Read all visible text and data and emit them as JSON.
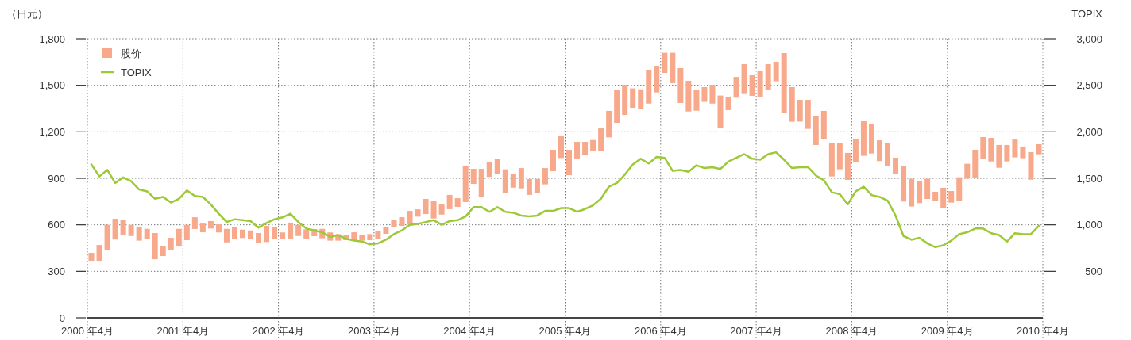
{
  "chart_data": {
    "type": "bar",
    "ylabel": "（日元）",
    "y2label": "TOPIX",
    "x": [
      "2000-04-16",
      "2000-05-16",
      "2000-06-16",
      "2000-07-16",
      "2000-08-16",
      "2000-09-16",
      "2000-10-16",
      "2000-11-16",
      "2000-12-16",
      "2001-01-16",
      "2001-02-16",
      "2001-03-16",
      "2001-04-16",
      "2001-05-16",
      "2001-06-16",
      "2001-07-16",
      "2001-08-16",
      "2001-09-16",
      "2001-10-16",
      "2001-11-16",
      "2001-12-16",
      "2002-01-16",
      "2002-02-16",
      "2002-03-16",
      "2002-04-16",
      "2002-05-16",
      "2002-06-16",
      "2002-07-16",
      "2002-08-16",
      "2002-09-16",
      "2002-10-16",
      "2002-11-16",
      "2002-12-16",
      "2003-01-16",
      "2003-02-16",
      "2003-03-16",
      "2003-04-16",
      "2003-05-16",
      "2003-06-16",
      "2003-07-16",
      "2003-08-16",
      "2003-09-16",
      "2003-10-16",
      "2003-11-16",
      "2003-12-16",
      "2004-01-16",
      "2004-02-16",
      "2004-03-16",
      "2004-04-16",
      "2004-05-16",
      "2004-06-16",
      "2004-07-16",
      "2004-08-16",
      "2004-09-16",
      "2004-10-16",
      "2004-11-16",
      "2004-12-16",
      "2005-01-16",
      "2005-02-16",
      "2005-03-16",
      "2005-04-16",
      "2005-05-16",
      "2005-06-16",
      "2005-07-16",
      "2005-08-16",
      "2005-09-16",
      "2005-10-16",
      "2005-11-16",
      "2005-12-16",
      "2006-01-16",
      "2006-02-16",
      "2006-03-16",
      "2006-04-16",
      "2006-05-16",
      "2006-06-16",
      "2006-07-16",
      "2006-08-16",
      "2006-09-16",
      "2006-10-16",
      "2006-11-16",
      "2006-12-16",
      "2007-01-16",
      "2007-02-16",
      "2007-03-16",
      "2007-04-16",
      "2007-05-16",
      "2007-06-16",
      "2007-07-16",
      "2007-08-16",
      "2007-09-16",
      "2007-10-16",
      "2007-11-16",
      "2007-12-16",
      "2008-01-16",
      "2008-02-16",
      "2008-03-16",
      "2008-04-16",
      "2008-05-16",
      "2008-06-16",
      "2008-07-16",
      "2008-08-16",
      "2008-09-16",
      "2008-10-16",
      "2008-11-16",
      "2008-12-16",
      "2009-01-16",
      "2009-02-16",
      "2009-03-16",
      "2009-04-16",
      "2009-05-16",
      "2009-06-16",
      "2009-07-16",
      "2009-08-16",
      "2009-09-16",
      "2009-10-16",
      "2009-11-16",
      "2009-12-16",
      "2010-01-16",
      "2010-02-16",
      "2010-03-16"
    ],
    "series": [
      {
        "name": "股价",
        "color": "#f8a98b",
        "base": [
          368,
          368,
          440,
          505,
          534,
          528,
          498,
          508,
          378,
          399,
          440,
          460,
          501,
          573,
          552,
          576,
          551,
          487,
          508,
          515,
          510,
          482,
          489,
          508,
          508,
          511,
          528,
          511,
          527,
          513,
          498,
          498,
          501,
          498,
          498,
          501,
          511,
          542,
          583,
          593,
          602,
          653,
          670,
          641,
          666,
          701,
          716,
          747,
          864,
          777,
          909,
          926,
          806,
          840,
          835,
          793,
          806,
          861,
          946,
          1031,
          920,
          1028,
          1048,
          1076,
          1079,
          1164,
          1258,
          1309,
          1355,
          1348,
          1382,
          1454,
          1580,
          1514,
          1386,
          1331,
          1336,
          1393,
          1382,
          1226,
          1340,
          1420,
          1449,
          1432,
          1427,
          1471,
          1526,
          1321,
          1265,
          1266,
          1219,
          1115,
          1152,
          912,
          958,
          890,
          1004,
          1045,
          1060,
          1011,
          978,
          931,
          750,
          718,
          740,
          767,
          752,
          707,
          743,
          753,
          898,
          900,
          1024,
          1009,
          968,
          1009,
          1035,
          1030,
          891,
          1055
        ],
        "values": [
          51,
          102,
          160,
          134,
          95,
          72,
          85,
          66,
          169,
          61,
          76,
          114,
          99,
          76,
          56,
          48,
          52,
          87,
          80,
          54,
          54,
          65,
          104,
          80,
          43,
          103,
          72,
          60,
          46,
          61,
          53,
          41,
          34,
          54,
          39,
          39,
          51,
          46,
          51,
          56,
          88,
          47,
          97,
          111,
          65,
          92,
          56,
          235,
          97,
          184,
          98,
          100,
          152,
          86,
          131,
          102,
          89,
          105,
          138,
          145,
          164,
          107,
          87,
          71,
          143,
          171,
          210,
          194,
          125,
          126,
          219,
          172,
          130,
          196,
          225,
          198,
          137,
          95,
          121,
          208,
          87,
          134,
          187,
          133,
          168,
          165,
          126,
          387,
          223,
          140,
          187,
          189,
          183,
          213,
          167,
          174,
          152,
          223,
          193,
          134,
          152,
          102,
          232,
          179,
          140,
          130,
          61,
          132,
          75,
          154,
          96,
          184,
          142,
          152,
          147,
          106,
          115,
          75,
          178,
          65
        ]
      },
      {
        "name": "TOPIX",
        "type": "line",
        "axis": "y2",
        "color": "#9dc937",
        "values": [
          1650,
          1520,
          1590,
          1450,
          1510,
          1470,
          1380,
          1360,
          1280,
          1300,
          1240,
          1280,
          1370,
          1310,
          1300,
          1220,
          1120,
          1030,
          1060,
          1050,
          1040,
          970,
          1020,
          1060,
          1080,
          1120,
          1030,
          960,
          940,
          920,
          870,
          890,
          850,
          830,
          820,
          790,
          800,
          840,
          900,
          940,
          1000,
          1010,
          1030,
          1050,
          1000,
          1040,
          1050,
          1090,
          1190,
          1190,
          1140,
          1190,
          1140,
          1130,
          1100,
          1090,
          1100,
          1150,
          1150,
          1180,
          1180,
          1140,
          1170,
          1210,
          1280,
          1410,
          1450,
          1540,
          1650,
          1710,
          1660,
          1730,
          1720,
          1580,
          1590,
          1570,
          1640,
          1610,
          1620,
          1600,
          1680,
          1720,
          1760,
          1710,
          1700,
          1760,
          1780,
          1700,
          1610,
          1620,
          1620,
          1530,
          1480,
          1350,
          1330,
          1220,
          1360,
          1410,
          1320,
          1300,
          1260,
          1100,
          880,
          840,
          860,
          800,
          760,
          780,
          830,
          900,
          920,
          960,
          960,
          910,
          890,
          820,
          910,
          900,
          900,
          990
        ]
      }
    ],
    "xlim": [
      "2000-04",
      "2010-04"
    ],
    "xticks": [
      {
        "value": "2000-04",
        "label": "2000 年4月"
      },
      {
        "value": "2001-04",
        "label": "2001 年4月"
      },
      {
        "value": "2002-04",
        "label": "2002 年4月"
      },
      {
        "value": "2003-04",
        "label": "2003 年4月"
      },
      {
        "value": "2004-04",
        "label": "2004 年4月"
      },
      {
        "value": "2005-04",
        "label": "2005 年4月"
      },
      {
        "value": "2006-04",
        "label": "2006 年4月"
      },
      {
        "value": "2007-04",
        "label": "2007 年4月"
      },
      {
        "value": "2008-04",
        "label": "2008 年4月"
      },
      {
        "value": "2009-04",
        "label": "2009 年4月"
      },
      {
        "value": "2010-04",
        "label": "2010 年4月"
      }
    ],
    "ylim": [
      0,
      1800
    ],
    "yticks": [
      0,
      300,
      600,
      900,
      {
        "value": 1200,
        "label": "1,200"
      },
      {
        "value": 1500,
        "label": "1,500"
      },
      {
        "value": 1800,
        "label": "1,800"
      }
    ],
    "y2lim": [
      0,
      3000
    ],
    "y2ticks": [
      500,
      {
        "value": 1000,
        "label": "1,000"
      },
      {
        "value": 1500,
        "label": "1,500"
      },
      {
        "value": 2000,
        "label": "2,000"
      },
      {
        "value": 2500,
        "label": "2,500"
      },
      {
        "value": 3000,
        "label": "3,000"
      }
    ],
    "grid": true,
    "legend": "top left"
  }
}
